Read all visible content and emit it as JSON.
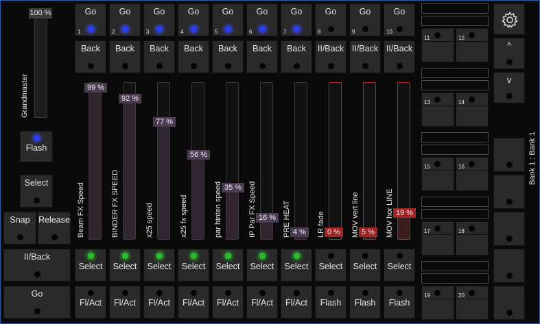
{
  "grandmaster": {
    "label": "Grandmaster",
    "percent_text": "100 %",
    "level": 100
  },
  "left_panel": {
    "flash_label": "Flash",
    "select_label": "Select",
    "snap_label": "Snap",
    "release_label": "Release",
    "back_label": "II/Back",
    "go_label": "Go"
  },
  "faders": [
    {
      "num": "1",
      "go": "Go",
      "back": "Back",
      "go_led": "blue",
      "name": "Beam FX Speed",
      "pct": "99 %",
      "level": 99,
      "red": false,
      "select": "Select",
      "select_led": "green",
      "bottom": "Fl/Act"
    },
    {
      "num": "2",
      "go": "Go",
      "back": "Back",
      "go_led": "blue",
      "name": "BINDER FX SPEED",
      "pct": "92 %",
      "level": 92,
      "red": false,
      "select": "Select",
      "select_led": "green",
      "bottom": "Fl/Act"
    },
    {
      "num": "3",
      "go": "Go",
      "back": "Back",
      "go_led": "blue",
      "name": "x25 speed",
      "pct": "77 %",
      "level": 77,
      "red": false,
      "select": "Select",
      "select_led": "green",
      "bottom": "Fl/Act"
    },
    {
      "num": "4",
      "go": "Go",
      "back": "Back",
      "go_led": "blue",
      "name": "x25 fx speed",
      "pct": "56 %",
      "level": 56,
      "red": false,
      "select": "Select",
      "select_led": "green",
      "bottom": "Fl/Act"
    },
    {
      "num": "5",
      "go": "Go",
      "back": "Back",
      "go_led": "blue",
      "name": "par hinten speed",
      "pct": "35 %",
      "level": 35,
      "red": false,
      "select": "Select",
      "select_led": "green",
      "bottom": "Fl/Act"
    },
    {
      "num": "6",
      "go": "Go",
      "back": "Back",
      "go_led": "blue",
      "name": "IP Par FX Speed",
      "pct": "16 %",
      "level": 16,
      "red": false,
      "select": "Select",
      "select_led": "green",
      "bottom": "Fl/Act"
    },
    {
      "num": "7",
      "go": "Go",
      "back": "Back",
      "go_led": "blue",
      "name": "PRE HEAT",
      "pct": "4 %",
      "level": 4,
      "red": false,
      "select": "Select",
      "select_led": "green",
      "bottom": "Fl/Act"
    },
    {
      "num": "8",
      "go": "Go",
      "back": "II/Back",
      "go_led": "off",
      "name": "LR fade",
      "pct": "0 %",
      "level": 0,
      "red": true,
      "select": "Select",
      "select_led": "off",
      "bottom": "Flash"
    },
    {
      "num": "9",
      "go": "Go",
      "back": "II/Back",
      "go_led": "off",
      "name": "MOV vert line",
      "pct": "5 %",
      "level": 5,
      "red": true,
      "select": "Select",
      "select_led": "off",
      "bottom": "Flash"
    },
    {
      "num": "10",
      "go": "Go",
      "back": "II/Back",
      "go_led": "off",
      "name": "MOV hor LINE",
      "pct": "19 %",
      "level": 19,
      "red": true,
      "select": "Select",
      "select_led": "off",
      "bottom": "Flash"
    }
  ],
  "executor_buttons": [
    {
      "a": "11",
      "b": "12"
    },
    {
      "a": "13",
      "b": "14"
    },
    {
      "a": "15",
      "b": "16"
    },
    {
      "a": "17",
      "b": "18"
    },
    {
      "a": "19",
      "b": "20"
    }
  ],
  "right_column": {
    "settings_icon": "gear-icon",
    "page_up_label": "^",
    "page_down_label": "v",
    "bank_label": "Bank 1 : Bank 1"
  },
  "colors": {
    "go_led": "#2a3cf0",
    "select_led": "#2dbb2d",
    "fader_fill": "#2f2630",
    "fader_pct": "#4c3c52",
    "red_fader": "#a02424",
    "frame_border": "#2a5db0"
  }
}
